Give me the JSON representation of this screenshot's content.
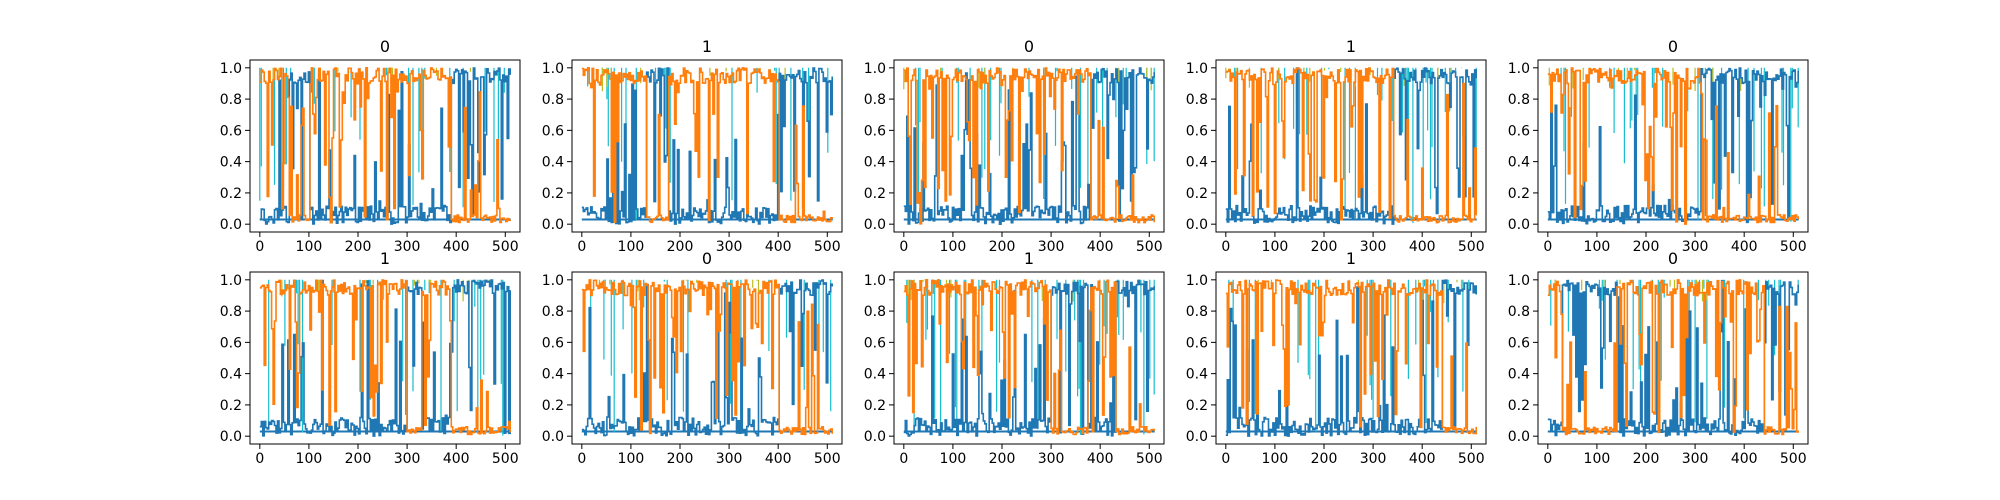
{
  "figure": {
    "background": "#ffffff",
    "axes_color": "#000000",
    "series_colors": [
      "#1f77b4",
      "#ff7f0e",
      "#17becf",
      "#bcbd22",
      "#2ca02c",
      "#d62728",
      "#9467bd"
    ]
  },
  "chart_data": [
    {
      "type": "area",
      "title": "0",
      "xlim": [
        -20,
        530
      ],
      "ylim": [
        -0.05,
        1.05
      ],
      "xticks": [
        0,
        100,
        200,
        300,
        400,
        500
      ],
      "yticks": [
        0.0,
        0.2,
        0.4,
        0.6,
        0.8,
        1.0
      ],
      "x_range": [
        0,
        511
      ],
      "regimes": [
        {
          "from": 0,
          "to": 60,
          "dominant": "orange"
        },
        {
          "from": 60,
          "to": 100,
          "dominant": "blue"
        },
        {
          "from": 100,
          "to": 390,
          "dominant": "orange"
        },
        {
          "from": 390,
          "to": 511,
          "dominant": "blue"
        }
      ]
    },
    {
      "type": "area",
      "title": "1",
      "xlim": [
        -20,
        530
      ],
      "ylim": [
        -0.05,
        1.05
      ],
      "xticks": [
        0,
        100,
        200,
        300,
        400,
        500
      ],
      "yticks": [
        0.0,
        0.2,
        0.4,
        0.6,
        0.8,
        1.0
      ],
      "x_range": [
        0,
        511
      ],
      "regimes": [
        {
          "from": 0,
          "to": 130,
          "dominant": "orange"
        },
        {
          "from": 130,
          "to": 175,
          "dominant": "blue"
        },
        {
          "from": 175,
          "to": 400,
          "dominant": "orange"
        },
        {
          "from": 400,
          "to": 511,
          "dominant": "blue"
        }
      ]
    },
    {
      "type": "area",
      "title": "0",
      "xlim": [
        -20,
        530
      ],
      "ylim": [
        -0.05,
        1.05
      ],
      "xticks": [
        0,
        100,
        200,
        300,
        400,
        500
      ],
      "yticks": [
        0.0,
        0.2,
        0.4,
        0.6,
        0.8,
        1.0
      ],
      "x_range": [
        0,
        511
      ],
      "regimes": [
        {
          "from": 0,
          "to": 380,
          "dominant": "orange"
        },
        {
          "from": 380,
          "to": 511,
          "dominant": "blue"
        }
      ]
    },
    {
      "type": "area",
      "title": "1",
      "xlim": [
        -20,
        530
      ],
      "ylim": [
        -0.05,
        1.05
      ],
      "xticks": [
        0,
        100,
        200,
        300,
        400,
        500
      ],
      "yticks": [
        0.0,
        0.2,
        0.4,
        0.6,
        0.8,
        1.0
      ],
      "x_range": [
        0,
        511
      ],
      "regimes": [
        {
          "from": 0,
          "to": 340,
          "dominant": "orange"
        },
        {
          "from": 340,
          "to": 511,
          "dominant": "blue"
        }
      ]
    },
    {
      "type": "area",
      "title": "0",
      "xlim": [
        -20,
        530
      ],
      "ylim": [
        -0.05,
        1.05
      ],
      "xticks": [
        0,
        100,
        200,
        300,
        400,
        500
      ],
      "yticks": [
        0.0,
        0.2,
        0.4,
        0.6,
        0.8,
        1.0
      ],
      "x_range": [
        0,
        511
      ],
      "regimes": [
        {
          "from": 0,
          "to": 310,
          "dominant": "orange"
        },
        {
          "from": 310,
          "to": 511,
          "dominant": "blue"
        }
      ]
    },
    {
      "type": "area",
      "title": "1",
      "xlim": [
        -20,
        530
      ],
      "ylim": [
        -0.05,
        1.05
      ],
      "xticks": [
        0,
        100,
        200,
        300,
        400,
        500
      ],
      "yticks": [
        0.0,
        0.2,
        0.4,
        0.6,
        0.8,
        1.0
      ],
      "x_range": [
        0,
        511
      ],
      "regimes": [
        {
          "from": 0,
          "to": 300,
          "dominant": "orange"
        },
        {
          "from": 300,
          "to": 330,
          "dominant": "blue"
        },
        {
          "from": 330,
          "to": 385,
          "dominant": "orange"
        },
        {
          "from": 385,
          "to": 511,
          "dominant": "blue"
        }
      ]
    },
    {
      "type": "area",
      "title": "0",
      "xlim": [
        -20,
        530
      ],
      "ylim": [
        -0.05,
        1.05
      ],
      "xticks": [
        0,
        100,
        200,
        300,
        400,
        500
      ],
      "yticks": [
        0.0,
        0.2,
        0.4,
        0.6,
        0.8,
        1.0
      ],
      "x_range": [
        0,
        511
      ],
      "regimes": [
        {
          "from": 0,
          "to": 400,
          "dominant": "orange"
        },
        {
          "from": 400,
          "to": 511,
          "dominant": "blue"
        }
      ]
    },
    {
      "type": "area",
      "title": "1",
      "xlim": [
        -20,
        530
      ],
      "ylim": [
        -0.05,
        1.05
      ],
      "xticks": [
        0,
        100,
        200,
        300,
        400,
        500
      ],
      "yticks": [
        0.0,
        0.2,
        0.4,
        0.6,
        0.8,
        1.0
      ],
      "x_range": [
        0,
        511
      ],
      "regimes": [
        {
          "from": 0,
          "to": 300,
          "dominant": "orange"
        },
        {
          "from": 300,
          "to": 375,
          "dominant": "blue"
        },
        {
          "from": 375,
          "to": 430,
          "dominant": "orange"
        },
        {
          "from": 430,
          "to": 511,
          "dominant": "blue"
        }
      ]
    },
    {
      "type": "area",
      "title": "1",
      "xlim": [
        -20,
        530
      ],
      "ylim": [
        -0.05,
        1.05
      ],
      "xticks": [
        0,
        100,
        200,
        300,
        400,
        500
      ],
      "yticks": [
        0.0,
        0.2,
        0.4,
        0.6,
        0.8,
        1.0
      ],
      "x_range": [
        0,
        511
      ],
      "regimes": [
        {
          "from": 0,
          "to": 440,
          "dominant": "orange"
        },
        {
          "from": 440,
          "to": 511,
          "dominant": "blue"
        }
      ]
    },
    {
      "type": "area",
      "title": "0",
      "xlim": [
        -20,
        530
      ],
      "ylim": [
        -0.05,
        1.05
      ],
      "xticks": [
        0,
        100,
        200,
        300,
        400,
        500
      ],
      "yticks": [
        0.0,
        0.2,
        0.4,
        0.6,
        0.8,
        1.0
      ],
      "x_range": [
        0,
        511
      ],
      "regimes": [
        {
          "from": 0,
          "to": 30,
          "dominant": "orange"
        },
        {
          "from": 30,
          "to": 140,
          "dominant": "blue"
        },
        {
          "from": 140,
          "to": 440,
          "dominant": "orange"
        },
        {
          "from": 440,
          "to": 511,
          "dominant": "blue"
        }
      ]
    }
  ]
}
